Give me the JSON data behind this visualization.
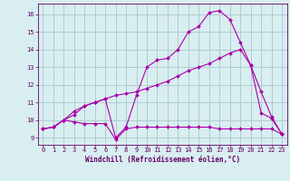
{
  "bg_color": "#d8eef0",
  "plot_bg_color": "#d8eef0",
  "grid_color": "#b0ccd0",
  "line_color": "#aa00aa",
  "marker_color": "#aa00aa",
  "xlabel": "Windchill (Refroidissement éolien,°C)",
  "xlabel_color": "#660066",
  "tick_color": "#660066",
  "spine_color": "#660066",
  "ylim": [
    8.6,
    16.6
  ],
  "xlim": [
    -0.5,
    23.5
  ],
  "yticks": [
    9,
    10,
    11,
    12,
    13,
    14,
    15,
    16
  ],
  "xticks": [
    0,
    1,
    2,
    3,
    4,
    5,
    6,
    7,
    8,
    9,
    10,
    11,
    12,
    13,
    14,
    15,
    16,
    17,
    18,
    19,
    20,
    21,
    22,
    23
  ],
  "line1_x": [
    0,
    1,
    2,
    3,
    4,
    5,
    6,
    7,
    8,
    9,
    10,
    11,
    12,
    13,
    14,
    15,
    16,
    17,
    18,
    19,
    20,
    21,
    22,
    23
  ],
  "line1_y": [
    9.5,
    9.6,
    10.0,
    9.9,
    9.8,
    9.8,
    9.8,
    8.9,
    9.5,
    9.6,
    9.6,
    9.6,
    9.6,
    9.6,
    9.6,
    9.6,
    9.6,
    9.5,
    9.5,
    9.5,
    9.5,
    9.5,
    9.5,
    9.2
  ],
  "line2_x": [
    0,
    1,
    2,
    3,
    4,
    5,
    6,
    7,
    8,
    9,
    10,
    11,
    12,
    13,
    14,
    15,
    16,
    17,
    18,
    19,
    20,
    21,
    22,
    23
  ],
  "line2_y": [
    9.5,
    9.6,
    10.0,
    10.5,
    10.8,
    11.0,
    11.2,
    11.4,
    11.5,
    11.6,
    11.8,
    12.0,
    12.2,
    12.5,
    12.8,
    13.0,
    13.2,
    13.5,
    13.8,
    14.0,
    13.1,
    11.6,
    10.2,
    9.2
  ],
  "line3_x": [
    0,
    1,
    2,
    3,
    4,
    5,
    6,
    7,
    8,
    9,
    10,
    11,
    12,
    13,
    14,
    15,
    16,
    17,
    18,
    19,
    20,
    21,
    22,
    23
  ],
  "line3_y": [
    9.5,
    9.6,
    10.0,
    10.3,
    10.8,
    11.0,
    11.2,
    9.0,
    9.6,
    11.4,
    13.0,
    13.4,
    13.5,
    14.0,
    15.0,
    15.3,
    16.1,
    16.2,
    15.7,
    14.4,
    13.1,
    10.4,
    10.1,
    9.2
  ],
  "marker_size": 2.0,
  "line_width": 0.8
}
